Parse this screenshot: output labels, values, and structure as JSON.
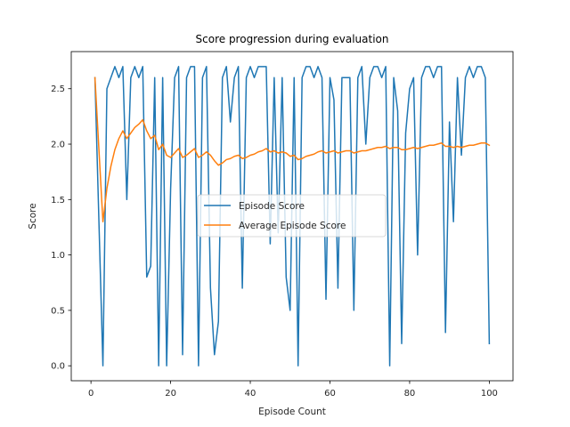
{
  "chart_data": {
    "type": "line",
    "title": "Score progression during evaluation",
    "xlabel": "Episode Count",
    "ylabel": "Score",
    "xlim": [
      -4.95,
      105.95
    ],
    "ylim": [
      -0.135,
      2.835
    ],
    "xticks": [
      0,
      20,
      40,
      60,
      80,
      100
    ],
    "xtick_labels": [
      "0",
      "20",
      "40",
      "60",
      "80",
      "100"
    ],
    "yticks": [
      0.0,
      0.5,
      1.0,
      1.5,
      2.0,
      2.5
    ],
    "ytick_labels": [
      "0.0",
      "0.5",
      "1.0",
      "1.5",
      "2.0",
      "2.5"
    ],
    "grid": false,
    "legend_position": "center",
    "series": [
      {
        "name": "Episode Score",
        "color": "#1f77b4",
        "x": [
          1,
          2,
          3,
          4,
          5,
          6,
          7,
          8,
          9,
          10,
          11,
          12,
          13,
          14,
          15,
          16,
          17,
          18,
          19,
          20,
          21,
          22,
          23,
          24,
          25,
          26,
          27,
          28,
          29,
          30,
          31,
          32,
          33,
          34,
          35,
          36,
          37,
          38,
          39,
          40,
          41,
          42,
          43,
          44,
          45,
          46,
          47,
          48,
          49,
          50,
          51,
          52,
          53,
          54,
          55,
          56,
          57,
          58,
          59,
          60,
          61,
          62,
          63,
          64,
          65,
          66,
          67,
          68,
          69,
          70,
          71,
          72,
          73,
          74,
          75,
          76,
          77,
          78,
          79,
          80,
          81,
          82,
          83,
          84,
          85,
          86,
          87,
          88,
          89,
          90,
          91,
          92,
          93,
          94,
          95,
          96,
          97,
          98,
          99,
          100
        ],
        "y": [
          2.6,
          1.3,
          0.0,
          2.5,
          2.6,
          2.7,
          2.6,
          2.7,
          1.5,
          2.6,
          2.7,
          2.6,
          2.7,
          0.8,
          0.9,
          2.6,
          0.0,
          2.6,
          0.0,
          1.6,
          2.6,
          2.7,
          0.1,
          2.6,
          2.7,
          2.7,
          0.0,
          2.6,
          2.7,
          0.7,
          0.1,
          0.4,
          2.6,
          2.7,
          2.2,
          2.6,
          2.7,
          0.7,
          2.6,
          2.7,
          2.6,
          2.7,
          2.7,
          2.7,
          1.1,
          2.6,
          1.2,
          2.6,
          0.8,
          0.5,
          2.6,
          0.0,
          2.6,
          2.7,
          2.7,
          2.6,
          2.7,
          2.6,
          0.6,
          2.6,
          2.4,
          0.7,
          2.6,
          2.6,
          2.6,
          0.5,
          2.6,
          2.7,
          2.0,
          2.6,
          2.7,
          2.7,
          2.6,
          2.7,
          0.0,
          2.6,
          2.3,
          0.2,
          2.1,
          2.5,
          2.6,
          1.0,
          2.6,
          2.7,
          2.7,
          2.6,
          2.7,
          2.7,
          0.3,
          2.2,
          1.3,
          2.6,
          1.9,
          2.6,
          2.7,
          2.6,
          2.7,
          2.7,
          2.6,
          0.2
        ]
      },
      {
        "name": "Average Episode Score",
        "color": "#ff7f0e",
        "x": [
          1,
          2,
          3,
          4,
          5,
          6,
          7,
          8,
          9,
          10,
          11,
          12,
          13,
          14,
          15,
          16,
          17,
          18,
          19,
          20,
          21,
          22,
          23,
          24,
          25,
          26,
          27,
          28,
          29,
          30,
          31,
          32,
          33,
          34,
          35,
          36,
          37,
          38,
          39,
          40,
          41,
          42,
          43,
          44,
          45,
          46,
          47,
          48,
          49,
          50,
          51,
          52,
          53,
          54,
          55,
          56,
          57,
          58,
          59,
          60,
          61,
          62,
          63,
          64,
          65,
          66,
          67,
          68,
          69,
          70,
          71,
          72,
          73,
          74,
          75,
          76,
          77,
          78,
          79,
          80,
          81,
          82,
          83,
          84,
          85,
          86,
          87,
          88,
          89,
          90,
          91,
          92,
          93,
          94,
          95,
          96,
          97,
          98,
          99,
          100
        ],
        "y": [
          2.6,
          1.95,
          1.3,
          1.6,
          1.8,
          1.95,
          2.05,
          2.12,
          2.05,
          2.1,
          2.15,
          2.18,
          2.22,
          2.12,
          2.05,
          2.08,
          1.95,
          2.0,
          1.9,
          1.88,
          1.92,
          1.96,
          1.88,
          1.9,
          1.93,
          1.96,
          1.88,
          1.9,
          1.93,
          1.9,
          1.85,
          1.81,
          1.83,
          1.86,
          1.87,
          1.89,
          1.9,
          1.87,
          1.88,
          1.9,
          1.91,
          1.93,
          1.94,
          1.96,
          1.93,
          1.94,
          1.92,
          1.93,
          1.92,
          1.89,
          1.9,
          1.86,
          1.87,
          1.89,
          1.9,
          1.91,
          1.93,
          1.94,
          1.92,
          1.93,
          1.94,
          1.92,
          1.93,
          1.94,
          1.94,
          1.92,
          1.93,
          1.94,
          1.94,
          1.95,
          1.96,
          1.97,
          1.97,
          1.98,
          1.96,
          1.97,
          1.97,
          1.95,
          1.95,
          1.96,
          1.97,
          1.96,
          1.97,
          1.98,
          1.99,
          1.99,
          2.0,
          2.01,
          1.98,
          1.98,
          1.97,
          1.98,
          1.97,
          1.98,
          1.99,
          1.99,
          2.0,
          2.01,
          2.01,
          1.99
        ]
      }
    ]
  }
}
